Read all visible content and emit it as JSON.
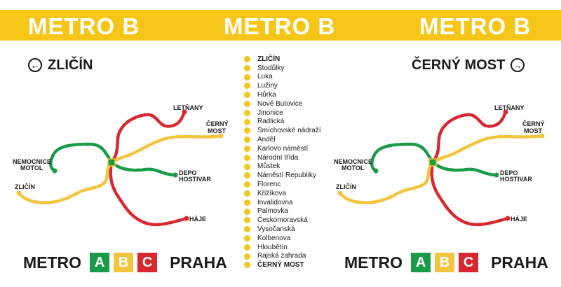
{
  "banner": {
    "title_left": "METRO B",
    "title_center": "METRO B",
    "title_right": "METRO B"
  },
  "directions": {
    "left": "ZLIČÍN",
    "right": "ČERNÝ MOST",
    "left_icon": "arrow-left-circle-icon",
    "right_icon": "arrow-right-circle-icon"
  },
  "stations": [
    "ZLIČÍN",
    "Stodůlky",
    "Luka",
    "Lužiny",
    "Hůrka",
    "Nové Butovice",
    "Jinonice",
    "Radlická",
    "Smíchovské nádraží",
    "Anděl",
    "Karlovo náměstí",
    "Národní třída",
    "Můstek",
    "Náměstí Republiky",
    "Florenc",
    "Křižíkova",
    "Invalidovna",
    "Palmovka",
    "Českomoravská",
    "Vysočanská",
    "Kolbenova",
    "Hloubětín",
    "Rajská zahrada",
    "ČERNÝ MOST"
  ],
  "map_labels": {
    "letnany": "LETŇANY",
    "cerny_most_1": "ČERNÝ",
    "cerny_most_2": "MOST",
    "nemocnice_1": "NEMOCNICE",
    "nemocnice_2": "MOTOL",
    "depo_1": "DEPO",
    "depo_2": "HOSTIVAR",
    "zlicin": "ZLIČÍN",
    "haje": "HÁJE"
  },
  "brand": {
    "metro": "METRO",
    "line_a": "A",
    "line_b": "B",
    "line_c": "C",
    "praha": "PRAHA"
  },
  "colors": {
    "line_a": "#1a9b48",
    "line_b": "#f2c53d",
    "line_c": "#d7282f",
    "banner": "#f5c518"
  }
}
